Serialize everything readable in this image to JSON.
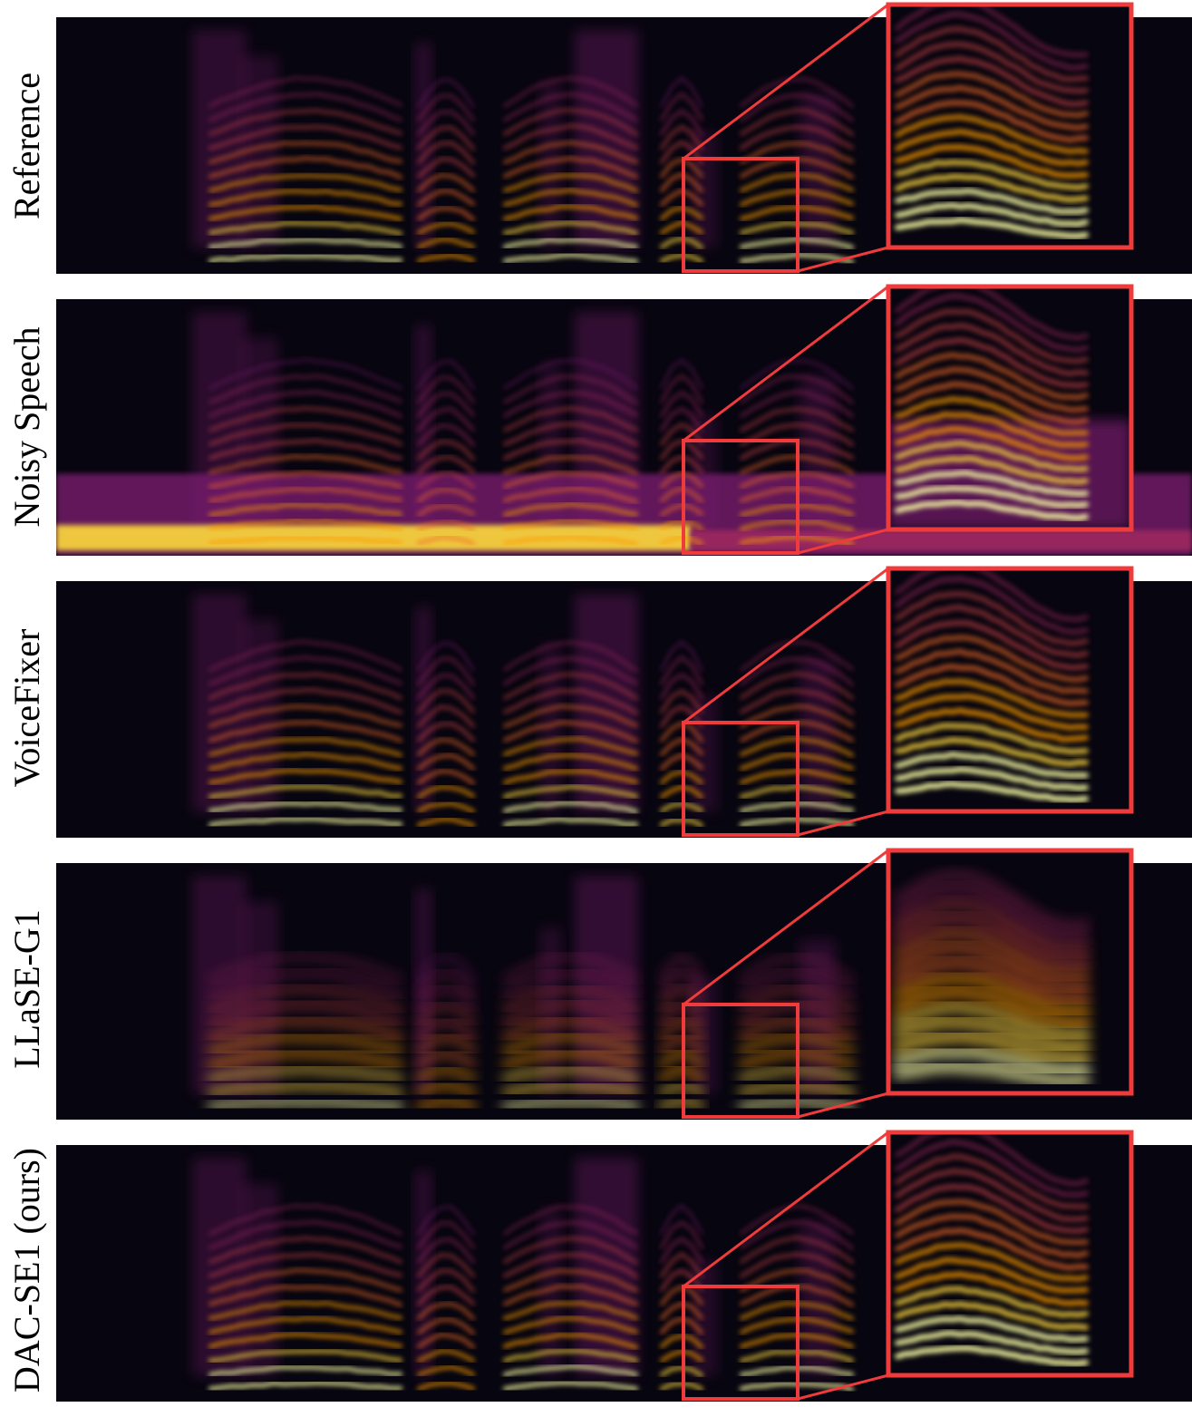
{
  "figure": {
    "rows": [
      {
        "label": "Reference",
        "profile": "clean"
      },
      {
        "label": "Noisy Speech",
        "profile": "noisy"
      },
      {
        "label": "VoiceFixer",
        "profile": "voicefixer"
      },
      {
        "label": "LLaSE-G1",
        "profile": "llase"
      },
      {
        "label": "DAC-SE1 (ours)",
        "profile": "ours"
      }
    ],
    "colors": {
      "background": "#ffffff",
      "spectrogram_base": "#07050f",
      "zoom_box": "#ef3b3b",
      "colormap": [
        "#000004",
        "#1b0c41",
        "#4a0c6b",
        "#781c6d",
        "#a52c60",
        "#cf4446",
        "#ed6925",
        "#fb9b06",
        "#f7d13d",
        "#fcffa4"
      ]
    }
  }
}
